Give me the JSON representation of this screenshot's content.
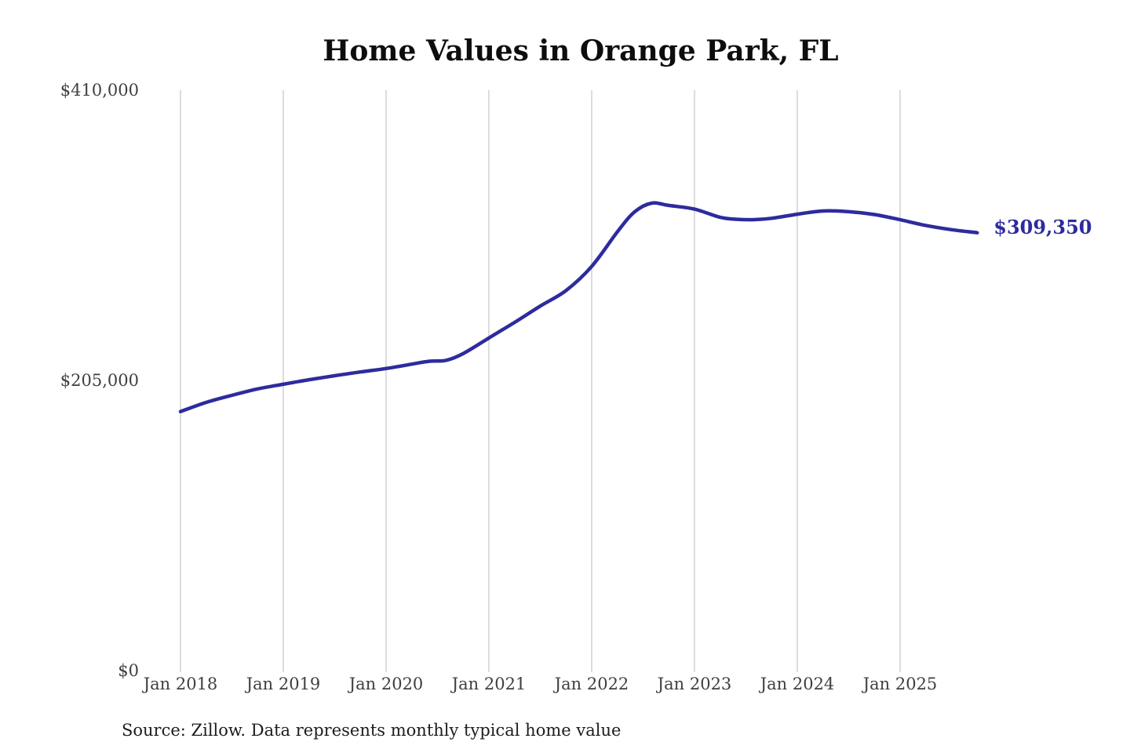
{
  "title": "Home Values in Orange Park, FL",
  "end_label": "$309,350",
  "source_note": "Source: Zillow. Data represents monthly typical home value",
  "colors": {
    "line": "#2e2b9e",
    "end_label": "#2e2b9e",
    "grid": "#cacaca",
    "axis_text": "#3f3f3f",
    "title_text": "#0d0d0d",
    "source_text": "#1c1c1c"
  },
  "chart_data": {
    "type": "line",
    "title": "Home Values in Orange Park, FL",
    "xlabel": "",
    "ylabel": "",
    "ylim": [
      0,
      410000
    ],
    "grid": "vertical-only",
    "legend": "none",
    "y_ticks": [
      {
        "label": "$0",
        "value": 0
      },
      {
        "label": "$205,000",
        "value": 205000
      },
      {
        "label": "$410,000",
        "value": 410000
      }
    ],
    "x_ticks": [
      {
        "label": "Jan 2018",
        "year": 2018
      },
      {
        "label": "Jan 2019",
        "year": 2019
      },
      {
        "label": "Jan 2020",
        "year": 2020
      },
      {
        "label": "Jan 2021",
        "year": 2021
      },
      {
        "label": "Jan 2022",
        "year": 2022
      },
      {
        "label": "Jan 2023",
        "year": 2023
      },
      {
        "label": "Jan 2024",
        "year": 2024
      },
      {
        "label": "Jan 2025",
        "year": 2025
      }
    ],
    "series": [
      {
        "name": "Monthly typical home value",
        "latest_value": 309350,
        "latest_value_label": "$309,350",
        "points": [
          {
            "date": "2018-01",
            "value": 183000
          },
          {
            "date": "2018-04",
            "value": 189500
          },
          {
            "date": "2018-07",
            "value": 194500
          },
          {
            "date": "2018-10",
            "value": 199000
          },
          {
            "date": "2019-01",
            "value": 202300
          },
          {
            "date": "2019-04",
            "value": 205500
          },
          {
            "date": "2019-07",
            "value": 208300
          },
          {
            "date": "2019-10",
            "value": 211000
          },
          {
            "date": "2020-01",
            "value": 213400
          },
          {
            "date": "2020-04",
            "value": 216500
          },
          {
            "date": "2020-06",
            "value": 218500
          },
          {
            "date": "2020-08",
            "value": 219200
          },
          {
            "date": "2020-10",
            "value": 224000
          },
          {
            "date": "2021-01",
            "value": 235000
          },
          {
            "date": "2021-04",
            "value": 246000
          },
          {
            "date": "2021-07",
            "value": 257500
          },
          {
            "date": "2021-10",
            "value": 268500
          },
          {
            "date": "2022-01",
            "value": 285500
          },
          {
            "date": "2022-04",
            "value": 310000
          },
          {
            "date": "2022-06",
            "value": 324000
          },
          {
            "date": "2022-08",
            "value": 330200
          },
          {
            "date": "2022-10",
            "value": 328600
          },
          {
            "date": "2023-01",
            "value": 326000
          },
          {
            "date": "2023-04",
            "value": 320200
          },
          {
            "date": "2023-06",
            "value": 318800
          },
          {
            "date": "2023-08",
            "value": 318600
          },
          {
            "date": "2023-10",
            "value": 319500
          },
          {
            "date": "2024-01",
            "value": 322400
          },
          {
            "date": "2024-04",
            "value": 324700
          },
          {
            "date": "2024-07",
            "value": 324200
          },
          {
            "date": "2024-10",
            "value": 322200
          },
          {
            "date": "2025-01",
            "value": 318500
          },
          {
            "date": "2025-04",
            "value": 314500
          },
          {
            "date": "2025-07",
            "value": 311500
          },
          {
            "date": "2025-10",
            "value": 309350
          }
        ]
      }
    ]
  }
}
